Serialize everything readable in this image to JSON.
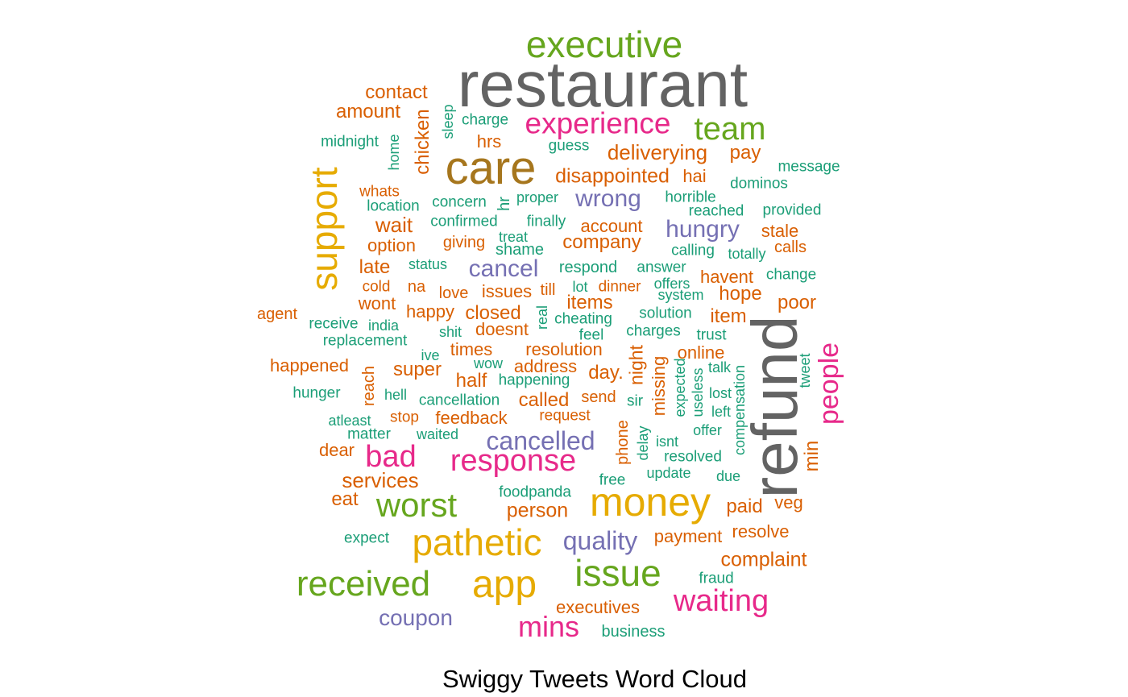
{
  "title": "Swiggy Tweets Word Cloud",
  "palette": {
    "gray": "#636363",
    "green": "#66a61e",
    "olive": "#a6761d",
    "orange": "#d95f02",
    "teal": "#1b9e77",
    "purple": "#7570b3",
    "magenta": "#e7298a",
    "gold": "#e6ab02"
  },
  "words": [
    {
      "text": "restaurant",
      "color": "gray"
    },
    {
      "text": "refund",
      "color": "gray"
    },
    {
      "text": "executive",
      "color": "green"
    },
    {
      "text": "care",
      "color": "olive"
    },
    {
      "text": "experience",
      "color": "magenta"
    },
    {
      "text": "team",
      "color": "green"
    },
    {
      "text": "contact",
      "color": "orange"
    },
    {
      "text": "amount",
      "color": "orange"
    },
    {
      "text": "chicken",
      "color": "orange"
    },
    {
      "text": "sleep",
      "color": "teal"
    },
    {
      "text": "charge",
      "color": "teal"
    },
    {
      "text": "midnight",
      "color": "teal"
    },
    {
      "text": "home",
      "color": "teal"
    },
    {
      "text": "hrs",
      "color": "orange"
    },
    {
      "text": "guess",
      "color": "teal"
    },
    {
      "text": "deliverying",
      "color": "orange"
    },
    {
      "text": "pay",
      "color": "orange"
    },
    {
      "text": "message",
      "color": "teal"
    },
    {
      "text": "support",
      "color": "gold"
    },
    {
      "text": "disappointed",
      "color": "orange"
    },
    {
      "text": "hai",
      "color": "orange"
    },
    {
      "text": "dominos",
      "color": "teal"
    },
    {
      "text": "whats",
      "color": "orange"
    },
    {
      "text": "concern",
      "color": "teal"
    },
    {
      "text": "hr",
      "color": "teal"
    },
    {
      "text": "proper",
      "color": "teal"
    },
    {
      "text": "wrong",
      "color": "purple"
    },
    {
      "text": "horrible",
      "color": "teal"
    },
    {
      "text": "location",
      "color": "teal"
    },
    {
      "text": "reached",
      "color": "teal"
    },
    {
      "text": "provided",
      "color": "teal"
    },
    {
      "text": "wait",
      "color": "orange"
    },
    {
      "text": "confirmed",
      "color": "teal"
    },
    {
      "text": "finally",
      "color": "teal"
    },
    {
      "text": "account",
      "color": "orange"
    },
    {
      "text": "hungry",
      "color": "purple"
    },
    {
      "text": "stale",
      "color": "orange"
    },
    {
      "text": "treat",
      "color": "teal"
    },
    {
      "text": "option",
      "color": "orange"
    },
    {
      "text": "giving",
      "color": "orange"
    },
    {
      "text": "company",
      "color": "orange"
    },
    {
      "text": "shame",
      "color": "teal"
    },
    {
      "text": "calls",
      "color": "orange"
    },
    {
      "text": "calling",
      "color": "teal"
    },
    {
      "text": "totally",
      "color": "teal"
    },
    {
      "text": "late",
      "color": "orange"
    },
    {
      "text": "status",
      "color": "teal"
    },
    {
      "text": "cancel",
      "color": "purple"
    },
    {
      "text": "respond",
      "color": "teal"
    },
    {
      "text": "answer",
      "color": "teal"
    },
    {
      "text": "change",
      "color": "teal"
    },
    {
      "text": "cold",
      "color": "orange"
    },
    {
      "text": "na",
      "color": "orange"
    },
    {
      "text": "havent",
      "color": "orange"
    },
    {
      "text": "love",
      "color": "orange"
    },
    {
      "text": "issues",
      "color": "orange"
    },
    {
      "text": "till",
      "color": "orange"
    },
    {
      "text": "lot",
      "color": "teal"
    },
    {
      "text": "dinner",
      "color": "orange"
    },
    {
      "text": "offers",
      "color": "teal"
    },
    {
      "text": "hope",
      "color": "orange"
    },
    {
      "text": "wont",
      "color": "orange"
    },
    {
      "text": "system",
      "color": "teal"
    },
    {
      "text": "poor",
      "color": "orange"
    },
    {
      "text": "items",
      "color": "orange"
    },
    {
      "text": "agent",
      "color": "orange"
    },
    {
      "text": "happy",
      "color": "orange"
    },
    {
      "text": "closed",
      "color": "orange"
    },
    {
      "text": "real",
      "color": "teal"
    },
    {
      "text": "solution",
      "color": "teal"
    },
    {
      "text": "item",
      "color": "orange"
    },
    {
      "text": "receive",
      "color": "teal"
    },
    {
      "text": "india",
      "color": "teal"
    },
    {
      "text": "cheating",
      "color": "teal"
    },
    {
      "text": "shit",
      "color": "teal"
    },
    {
      "text": "doesnt",
      "color": "orange"
    },
    {
      "text": "feel",
      "color": "teal"
    },
    {
      "text": "charges",
      "color": "teal"
    },
    {
      "text": "trust",
      "color": "teal"
    },
    {
      "text": "people",
      "color": "magenta"
    },
    {
      "text": "replacement",
      "color": "teal"
    },
    {
      "text": "times",
      "color": "orange"
    },
    {
      "text": "resolution",
      "color": "orange"
    },
    {
      "text": "ive",
      "color": "teal"
    },
    {
      "text": "online",
      "color": "orange"
    },
    {
      "text": "night",
      "color": "orange"
    },
    {
      "text": "happened",
      "color": "orange"
    },
    {
      "text": "reach",
      "color": "orange"
    },
    {
      "text": "wow",
      "color": "teal"
    },
    {
      "text": "address",
      "color": "orange"
    },
    {
      "text": "talk",
      "color": "teal"
    },
    {
      "text": "tweet",
      "color": "teal"
    },
    {
      "text": "super",
      "color": "orange"
    },
    {
      "text": "day.",
      "color": "orange"
    },
    {
      "text": "missing",
      "color": "orange"
    },
    {
      "text": "expected",
      "color": "teal"
    },
    {
      "text": "half",
      "color": "orange"
    },
    {
      "text": "happening",
      "color": "teal"
    },
    {
      "text": "hunger",
      "color": "teal"
    },
    {
      "text": "hell",
      "color": "teal"
    },
    {
      "text": "cancellation",
      "color": "teal"
    },
    {
      "text": "called",
      "color": "orange"
    },
    {
      "text": "send",
      "color": "orange"
    },
    {
      "text": "sir",
      "color": "teal"
    },
    {
      "text": "useless",
      "color": "teal"
    },
    {
      "text": "lost",
      "color": "teal"
    },
    {
      "text": "compensation",
      "color": "teal"
    },
    {
      "text": "atleast",
      "color": "teal"
    },
    {
      "text": "stop",
      "color": "orange"
    },
    {
      "text": "feedback",
      "color": "orange"
    },
    {
      "text": "request",
      "color": "orange"
    },
    {
      "text": "left",
      "color": "teal"
    },
    {
      "text": "min",
      "color": "orange"
    },
    {
      "text": "matter",
      "color": "teal"
    },
    {
      "text": "waited",
      "color": "teal"
    },
    {
      "text": "cancelled",
      "color": "purple"
    },
    {
      "text": "phone",
      "color": "orange"
    },
    {
      "text": "delay",
      "color": "teal"
    },
    {
      "text": "isnt",
      "color": "teal"
    },
    {
      "text": "offer",
      "color": "teal"
    },
    {
      "text": "dear",
      "color": "orange"
    },
    {
      "text": "bad",
      "color": "magenta"
    },
    {
      "text": "response",
      "color": "magenta"
    },
    {
      "text": "resolved",
      "color": "teal"
    },
    {
      "text": "update",
      "color": "teal"
    },
    {
      "text": "due",
      "color": "teal"
    },
    {
      "text": "services",
      "color": "orange"
    },
    {
      "text": "free",
      "color": "teal"
    },
    {
      "text": "foodpanda",
      "color": "teal"
    },
    {
      "text": "eat",
      "color": "orange"
    },
    {
      "text": "worst",
      "color": "green"
    },
    {
      "text": "money",
      "color": "gold"
    },
    {
      "text": "paid",
      "color": "orange"
    },
    {
      "text": "veg",
      "color": "orange"
    },
    {
      "text": "person",
      "color": "orange"
    },
    {
      "text": "expect",
      "color": "teal"
    },
    {
      "text": "pathetic",
      "color": "gold"
    },
    {
      "text": "quality",
      "color": "purple"
    },
    {
      "text": "payment",
      "color": "orange"
    },
    {
      "text": "resolve",
      "color": "orange"
    },
    {
      "text": "complaint",
      "color": "orange"
    },
    {
      "text": "issue",
      "color": "green"
    },
    {
      "text": "received",
      "color": "green"
    },
    {
      "text": "app",
      "color": "gold"
    },
    {
      "text": "fraud",
      "color": "teal"
    },
    {
      "text": "waiting",
      "color": "magenta"
    },
    {
      "text": "executives",
      "color": "orange"
    },
    {
      "text": "coupon",
      "color": "purple"
    },
    {
      "text": "mins",
      "color": "magenta"
    },
    {
      "text": "business",
      "color": "teal"
    }
  ]
}
